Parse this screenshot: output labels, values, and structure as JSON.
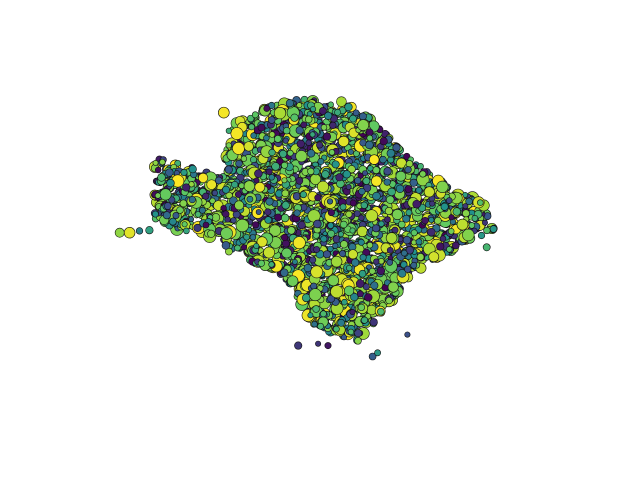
{
  "chart_data": {
    "type": "scatter",
    "title": "",
    "xlabel": "",
    "ylabel": "",
    "axes_visible": false,
    "grid": false,
    "legend": "none",
    "colormap": "viridis",
    "marker_edge_color": "#111111",
    "color_stops": [
      "#440154",
      "#3b528b",
      "#21918c",
      "#5ec962",
      "#a8db34",
      "#fde725"
    ],
    "xlim": [
      0,
      100
    ],
    "ylim": [
      0,
      100
    ],
    "description_of_shape": [],
    "series": [
      {
        "name": "",
        "seed": 20240617,
        "outline": [
          [
            15,
            73
          ],
          [
            30,
            67
          ],
          [
            29,
            72
          ],
          [
            31,
            82
          ],
          [
            36,
            86
          ],
          [
            44,
            89
          ],
          [
            53,
            88
          ],
          [
            58,
            84
          ],
          [
            64,
            76
          ],
          [
            68,
            71
          ],
          [
            75,
            64
          ],
          [
            81,
            61
          ],
          [
            84,
            53
          ],
          [
            79,
            50
          ],
          [
            72,
            45
          ],
          [
            66,
            39
          ],
          [
            60,
            28
          ],
          [
            56,
            22
          ],
          [
            49,
            25
          ],
          [
            46,
            28
          ],
          [
            43,
            37
          ],
          [
            39,
            42
          ],
          [
            30,
            46
          ],
          [
            29,
            50
          ],
          [
            23,
            52
          ],
          [
            19,
            53
          ],
          [
            15,
            56
          ]
        ],
        "count": 4200
      }
    ]
  }
}
